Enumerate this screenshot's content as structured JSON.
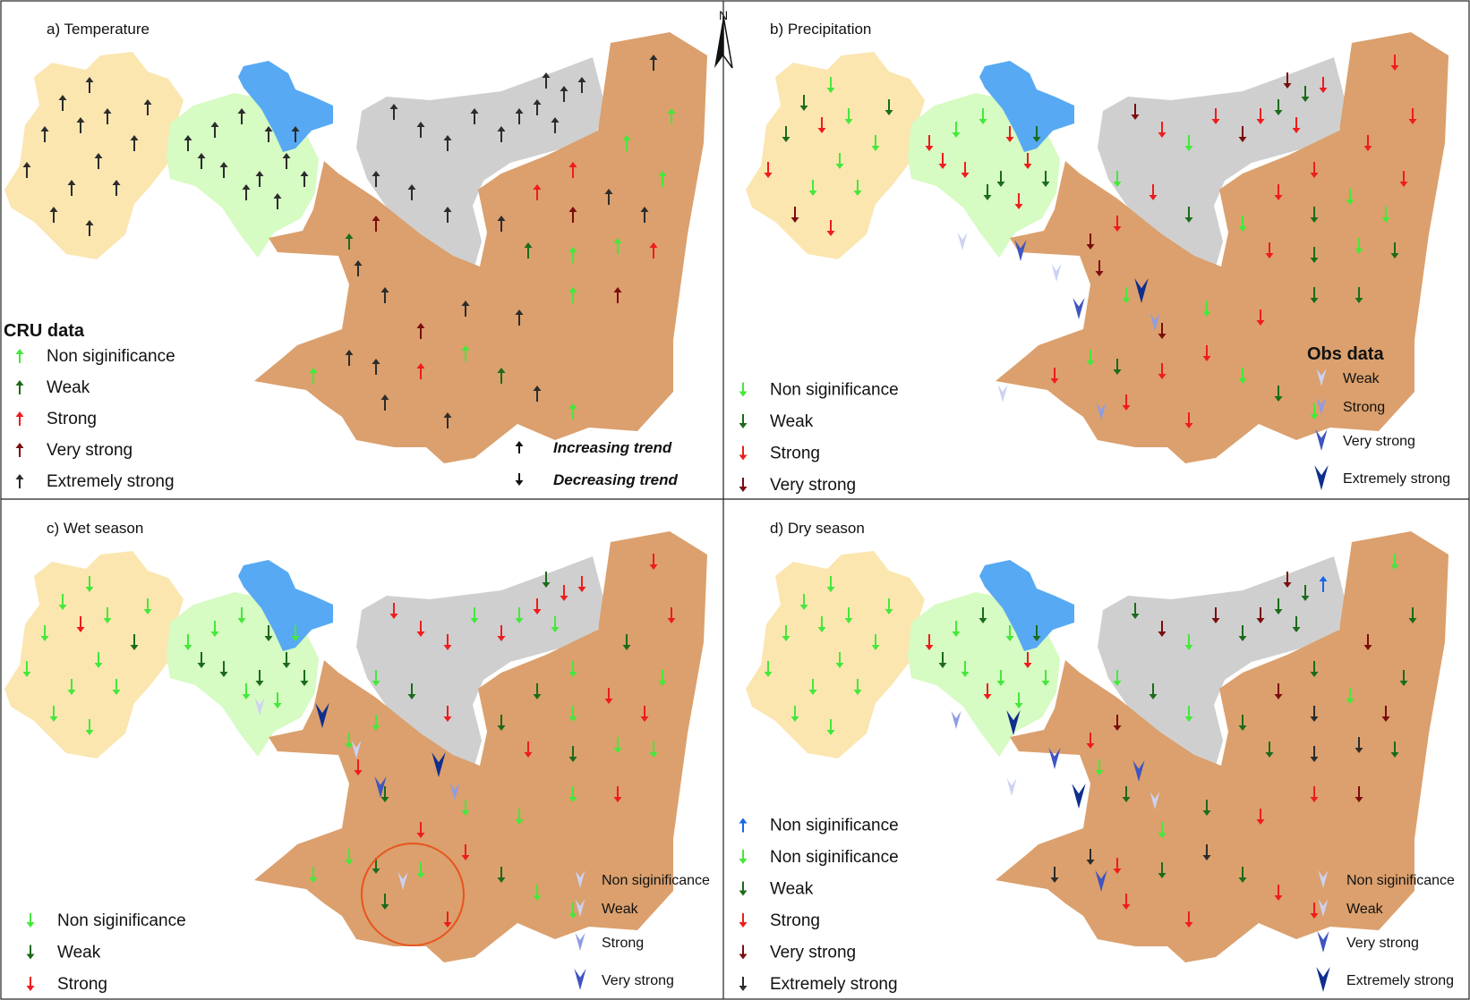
{
  "colors": {
    "yellow_basin": "#fbe6b0",
    "green_basin": "#d6fbc3",
    "gray_basin": "#cfcfcf",
    "orange_basin": "#dba06d",
    "lake": "#57a9f3",
    "frame": "#222222",
    "circle": "#e8541e"
  },
  "cru_class_colors": {
    "blue": "#1567e8",
    "ns": "#44e83b",
    "weak": "#1b6b1b",
    "strong": "#ef1c1c",
    "very": "#7a0d0d",
    "extreme": "#2c2c2c"
  },
  "obs_class_colors": {
    "nonsig": "#ccd2f4",
    "weak": "#ccd2f4",
    "strong": "#8f9ce4",
    "very": "#3f55c0",
    "extreme": "#0f2e8e"
  },
  "north_label": "N",
  "panels": [
    {
      "title": "a) Temperature",
      "cru_legend": {
        "heading": "CRU data",
        "items": [
          {
            "cls": "ns",
            "label": "Non siginificance"
          },
          {
            "cls": "weak",
            "label": "Weak"
          },
          {
            "cls": "strong",
            "label": "Strong"
          },
          {
            "cls": "very",
            "label": "Very strong"
          },
          {
            "cls": "extreme",
            "label": "Extremely strong"
          }
        ]
      },
      "direction_legend": [
        {
          "dir": "up",
          "label": "Increasing trend"
        },
        {
          "dir": "down",
          "label": "Decreasing trend"
        }
      ]
    },
    {
      "title": "b) Precipitation",
      "cru_legend": {
        "items": [
          {
            "cls": "ns",
            "label": "Non siginificance"
          },
          {
            "cls": "weak",
            "label": "Weak"
          },
          {
            "cls": "strong",
            "label": "Strong"
          },
          {
            "cls": "very",
            "label": "Very strong"
          }
        ]
      },
      "obs_legend": {
        "heading": "Obs data",
        "items": [
          {
            "cls": "weak",
            "label": "Weak"
          },
          {
            "cls": "strong",
            "label": "Strong"
          },
          {
            "cls": "very",
            "label": "Very strong"
          },
          {
            "cls": "extreme",
            "label": "Extremely strong"
          }
        ]
      }
    },
    {
      "title": "c) Wet season",
      "cru_legend": {
        "items": [
          {
            "cls": "ns",
            "label": "Non siginificance"
          },
          {
            "cls": "weak",
            "label": "Weak"
          },
          {
            "cls": "strong",
            "label": "Strong"
          }
        ]
      },
      "obs_legend": {
        "items": [
          {
            "cls": "nonsig",
            "label": "Non siginificance"
          },
          {
            "cls": "weak",
            "label": "Weak"
          },
          {
            "cls": "strong",
            "label": "Strong"
          },
          {
            "cls": "very",
            "label": "Very strong"
          }
        ]
      }
    },
    {
      "title": "d) Dry season",
      "cru_legend": {
        "items": [
          {
            "cls": "blue",
            "label": "Non siginificance"
          },
          {
            "cls": "ns",
            "label": "Non siginificance"
          },
          {
            "cls": "weak",
            "label": "Weak"
          },
          {
            "cls": "strong",
            "label": "Strong"
          },
          {
            "cls": "very",
            "label": "Very strong"
          },
          {
            "cls": "extreme",
            "label": "Extremely strong"
          }
        ]
      },
      "obs_legend": {
        "items": [
          {
            "cls": "nonsig",
            "label": "Non siginificance"
          },
          {
            "cls": "weak",
            "label": "Weak"
          },
          {
            "cls": "very",
            "label": "Very strong"
          },
          {
            "cls": "extreme",
            "label": "Extremely strong"
          }
        ]
      }
    }
  ]
}
